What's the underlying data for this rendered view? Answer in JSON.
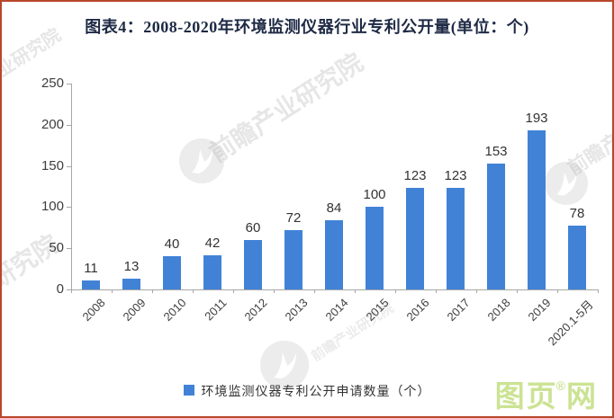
{
  "title": "图表4：2008-2020年环境监测仪器行业专利公开量(单位：个)",
  "chart_data": {
    "type": "bar",
    "title": "图表4：2008-2020年环境监测仪器行业专利公开量(单位：个)",
    "categories": [
      "2008",
      "2009",
      "2010",
      "2011",
      "2012",
      "2013",
      "2014",
      "2015",
      "2016",
      "2017",
      "2018",
      "2019",
      "2020.1-5月"
    ],
    "values": [
      11,
      13,
      40,
      42,
      60,
      72,
      84,
      100,
      123,
      123,
      153,
      193,
      78
    ],
    "series_name": "环境监测仪器专利公开申请数量（个）",
    "xlabel": "",
    "ylabel": "",
    "ylim": [
      0,
      250
    ],
    "y_ticks": [
      0,
      50,
      100,
      150,
      200,
      250
    ],
    "grid": false,
    "data_labels": true,
    "legend_position": "bottom",
    "bar_color": "#4182d7"
  },
  "legend": {
    "label": "环境监测仪器专利公开申请数量（个）"
  },
  "watermark": {
    "text": "前瞻产业研究院"
  },
  "logo": {
    "part1": "图页",
    "registered": "®",
    "part2": "网"
  },
  "colors": {
    "frame_border": "#b8472b",
    "bar": "#4182d7",
    "title_text": "#1e2a45",
    "axis": "#a6a6a6",
    "logo_green": "#cbe393"
  }
}
